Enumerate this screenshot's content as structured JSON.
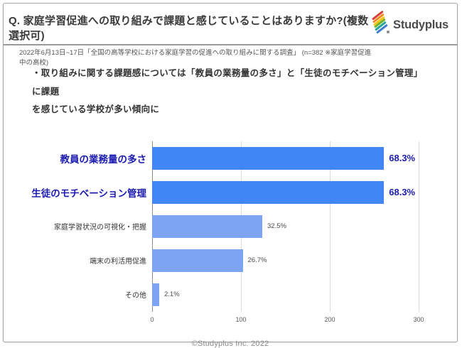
{
  "header": {
    "title": "Q. 家庭学習促進への取り組みで課題と感じていることはありますか?(複数選択可)",
    "subtitle": "2022年6月13日~17日「全国の高等学校における家庭学習の促進への取り組みに関する調査」 (n=382 ※家庭学習促進中の高校)",
    "logo_text": "Studyplus",
    "logo_icon": "studyplus-pencil-icon",
    "logo_stripe_colors": [
      "#d8403a",
      "#ef8c1f",
      "#f2c513",
      "#74b32e",
      "#2aa99b",
      "#3f7fd0"
    ]
  },
  "summary": {
    "text": "・取り組みに関する課題感については「教員の業務量の多さ」と「生徒のモチベーション管理」に課題\nを感じている学校が多い傾向に"
  },
  "chart_data": {
    "type": "bar",
    "orientation": "horizontal",
    "title": "",
    "categories": [
      "教員の業務量の多さ",
      "生徒のモチベーション管理",
      "家庭学習状況の可視化・把握",
      "端末の利活用促進",
      "その他"
    ],
    "values": [
      261,
      261,
      124,
      102,
      8
    ],
    "value_labels": [
      "68.3%",
      "68.3%",
      "32.5%",
      "26.7%",
      "2.1%"
    ],
    "percentages": [
      68.3,
      68.3,
      32.5,
      26.7,
      2.1
    ],
    "emphasized": [
      true,
      true,
      false,
      false,
      false
    ],
    "x_ticks": [
      0,
      100,
      200,
      300
    ],
    "xlim": [
      0,
      300
    ],
    "xlabel": "",
    "ylabel": "",
    "grid": true,
    "legend": false,
    "bar_color_emphasis": "#4285f4",
    "bar_color_normal": "#7da4f2",
    "label_color_emphasis": "#1b1bb3",
    "label_color_normal": "#333333",
    "value_color_normal": "#4a4a4a",
    "units_note": "n=382"
  },
  "footer": {
    "text": "©Studyplus Inc. 2022"
  }
}
